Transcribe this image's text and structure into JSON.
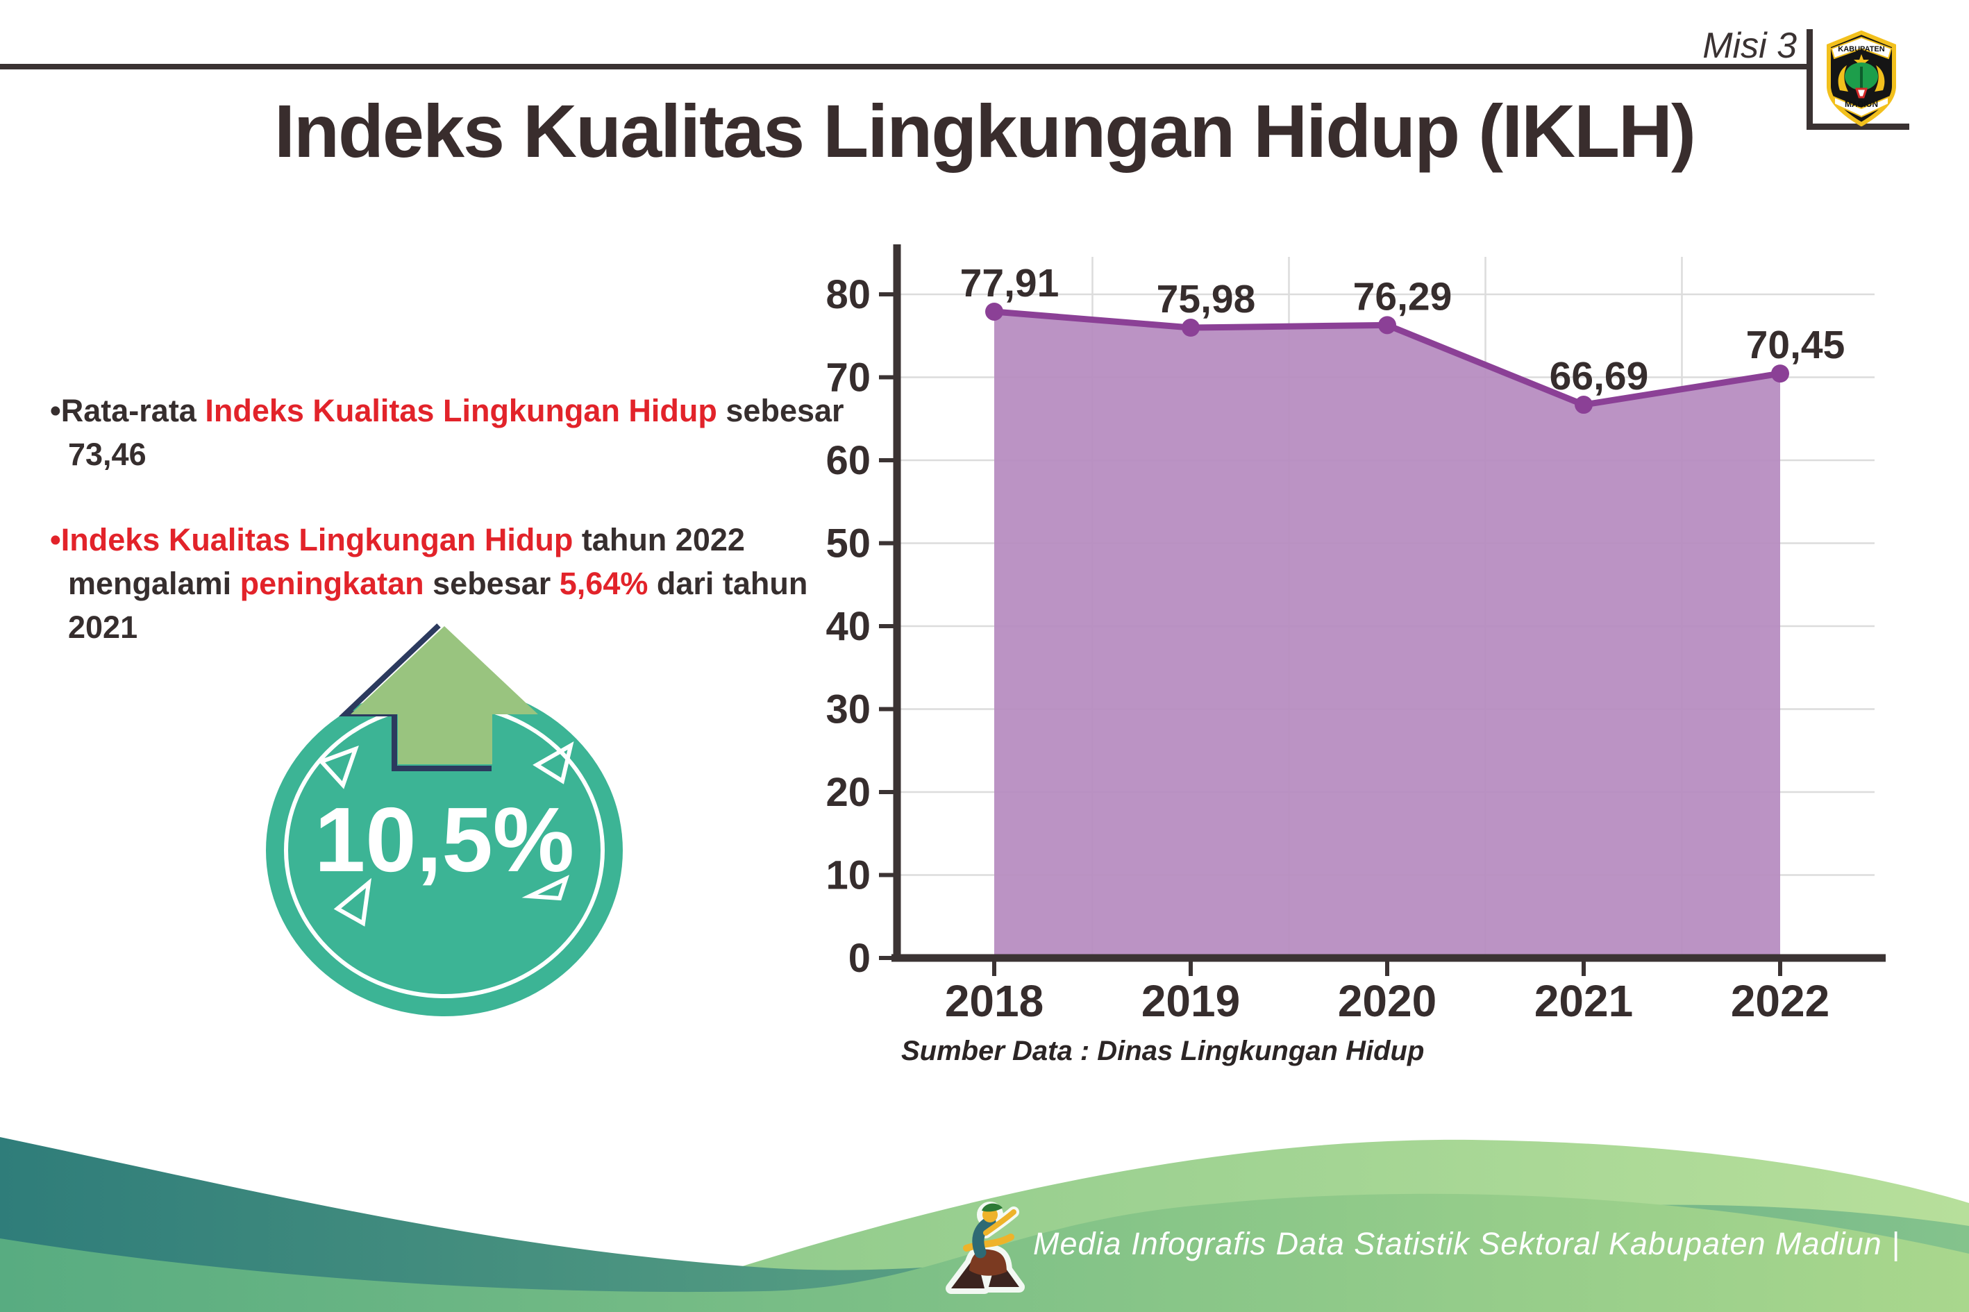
{
  "header": {
    "misi": "Misi 3",
    "logo_top": "KABUPATEN",
    "logo_bottom": "MADIUN"
  },
  "title": "Indeks Kualitas Lingkungan Hidup (IKLH)",
  "insights": {
    "b1s1": "•Rata-rata ",
    "b1s2": "Indeks Kualitas Lingkungan Hidup",
    "b1s3": " sebesar 73,46",
    "b2s1": "•Indeks Kualitas Lingkungan Hidup",
    "b2s2": " tahun 2022 mengalami ",
    "b2s3": "peningkatan",
    "b2s4": " sebesar ",
    "b2s5": "5,64%",
    "b2s6": " dari tahun 2021"
  },
  "badge": {
    "value": "10,5%"
  },
  "chart_data": {
    "type": "area",
    "title": "",
    "categories": [
      "2018",
      "2019",
      "2020",
      "2021",
      "2022"
    ],
    "values": [
      77.91,
      75.98,
      76.29,
      66.69,
      70.45
    ],
    "value_labels": [
      "77,91",
      "75,98",
      "76,29",
      "66,69",
      "70,45"
    ],
    "ylim": [
      0,
      80
    ],
    "ytick_step": 10,
    "grid": true,
    "legend": false,
    "line_color": "#8b4096",
    "fill_color": "#b58abf",
    "marker_color": "#8b4096",
    "axis_color": "#3b3333",
    "grid_color": "#dcdcdc",
    "label_color": "#362d2d",
    "source_note": "Sumber Data : Dinas Lingkungan Hidup"
  },
  "footer": {
    "credit": "Media Infografis Data Statistik Sektoral Kabupaten Madiun |"
  },
  "colors": {
    "red_accent": "#e2232a",
    "dark_text": "#362e2e",
    "badge_teal": "#3cb495",
    "arrow_green": "#99c47f",
    "footer_teal": "#2f7d7a",
    "footer_green": "#a9d78d"
  }
}
